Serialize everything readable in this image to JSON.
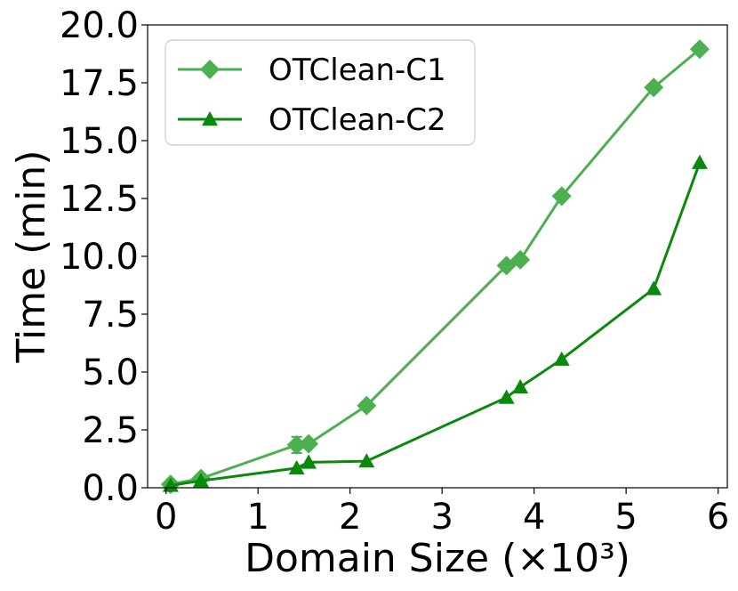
{
  "chart_data": {
    "type": "line",
    "xlabel": "Domain Size (×10³)",
    "ylabel": "Time (min)",
    "xlim": [
      -0.2,
      6.1
    ],
    "ylim": [
      0,
      20
    ],
    "xticks": [
      "0",
      "1",
      "2",
      "3",
      "4",
      "5",
      "6"
    ],
    "yticks": [
      "0.0",
      "2.5",
      "5.0",
      "7.5",
      "10.0",
      "12.5",
      "15.0",
      "17.5",
      "20.0"
    ],
    "grid": false,
    "legend_position": "top-left",
    "series": [
      {
        "name": "OTClean-C1",
        "color": "#4caf50",
        "marker": "diamond",
        "x": [
          0.05,
          0.38,
          1.42,
          1.55,
          2.18,
          3.7,
          3.85,
          4.3,
          5.3,
          5.8
        ],
        "y": [
          0.15,
          0.4,
          1.85,
          1.9,
          3.55,
          9.6,
          9.85,
          12.6,
          17.3,
          18.95
        ],
        "error": [
          0,
          0,
          0.35,
          0,
          0,
          0,
          0,
          0,
          0,
          0
        ]
      },
      {
        "name": "OTClean-C2",
        "color": "#0a8a0a",
        "marker": "triangle",
        "x": [
          0.05,
          0.38,
          1.42,
          1.55,
          2.18,
          3.7,
          3.85,
          4.3,
          5.3,
          5.8
        ],
        "y": [
          0.1,
          0.3,
          0.85,
          1.1,
          1.15,
          3.9,
          4.35,
          5.55,
          8.6,
          14.05
        ],
        "error": [
          0,
          0,
          0,
          0,
          0,
          0,
          0,
          0,
          0,
          0
        ]
      }
    ]
  }
}
